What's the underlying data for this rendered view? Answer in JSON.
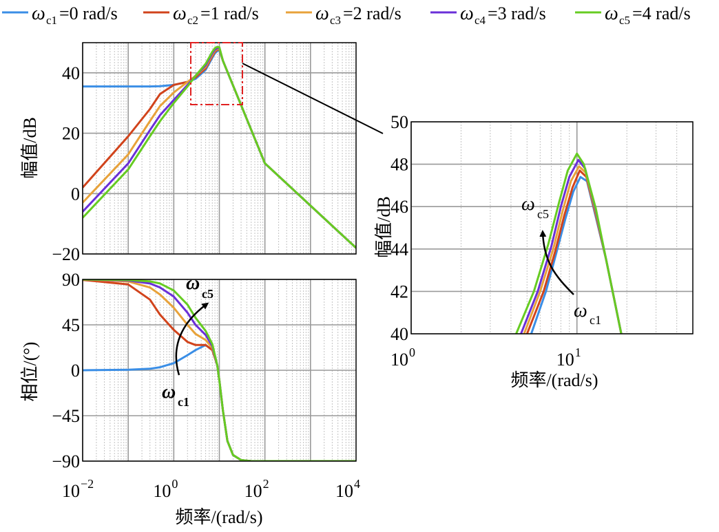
{
  "legend": [
    {
      "sym": "ω",
      "sub": "c1",
      "text": "=0 rad/s",
      "color": "#3a8ee6"
    },
    {
      "sym": "ω",
      "sub": "c2",
      "text": "=1 rad/s",
      "color": "#d1431b"
    },
    {
      "sym": "ω",
      "sub": "c3",
      "text": "=2 rad/s",
      "color": "#e8a23a"
    },
    {
      "sym": "ω",
      "sub": "c4",
      "text": "=3 rad/s",
      "color": "#6a2fd8"
    },
    {
      "sym": "ω",
      "sub": "c5",
      "text": "=4 rad/s",
      "color": "#66cc22"
    }
  ],
  "chart_data": [
    {
      "type": "line",
      "id": "magnitude",
      "ylabel": "幅值/dB",
      "xscale": "log",
      "xlim": [
        0.01,
        10000
      ],
      "ylim": [
        -20,
        50
      ],
      "yticks": [
        -20,
        0,
        20,
        40
      ],
      "grid": true,
      "series": [
        {
          "x": [
            0.01,
            0.1,
            0.3,
            0.5,
            1,
            2,
            3,
            5,
            7,
            8,
            9,
            10,
            12,
            100,
            10000
          ],
          "y": [
            35.5,
            35.5,
            35.5,
            35.6,
            36,
            37,
            38,
            41,
            45,
            46.5,
            47.2,
            47.5,
            44,
            10,
            -18
          ]
        },
        {
          "x": [
            0.01,
            0.1,
            0.3,
            0.5,
            1,
            2,
            3,
            5,
            7,
            8,
            9,
            10,
            12,
            100,
            10000
          ],
          "y": [
            2,
            19,
            28,
            33,
            36,
            37,
            38.5,
            41.5,
            45.5,
            47,
            47.6,
            47.8,
            44,
            10,
            -18
          ]
        },
        {
          "x": [
            0.01,
            0.1,
            0.3,
            0.5,
            1,
            2,
            3,
            5,
            7,
            8,
            9,
            10,
            12,
            100,
            10000
          ],
          "y": [
            -3,
            13,
            24,
            29,
            33.5,
            37,
            39,
            42,
            46,
            47.4,
            47.9,
            48,
            44,
            10,
            -18
          ]
        },
        {
          "x": [
            0.01,
            0.1,
            0.3,
            0.5,
            1,
            2,
            3,
            5,
            7,
            8,
            9,
            10,
            12,
            100,
            10000
          ],
          "y": [
            -6,
            10,
            21,
            26,
            31,
            36,
            39,
            42.5,
            46.5,
            47.7,
            48.2,
            48.3,
            44,
            10,
            -18
          ]
        },
        {
          "x": [
            0.01,
            0.1,
            0.3,
            0.5,
            1,
            2,
            3,
            5,
            7,
            8,
            9,
            10,
            12,
            100,
            10000
          ],
          "y": [
            -8,
            8,
            19,
            24,
            30,
            35.5,
            39,
            43,
            47,
            48.2,
            48.6,
            48.5,
            44,
            10,
            -18
          ]
        }
      ]
    },
    {
      "type": "line",
      "id": "phase",
      "ylabel": "相位/(°)",
      "xlabel": "频率/(rad/s)",
      "xscale": "log",
      "xlim": [
        0.01,
        10000
      ],
      "ylim": [
        -90,
        90
      ],
      "yticks": [
        -90,
        -45,
        0,
        45,
        90
      ],
      "xticks": [
        {
          "base": "10",
          "exp": "−2"
        },
        {
          "base": "10",
          "exp": "0"
        },
        {
          "base": "10",
          "exp": "2"
        },
        {
          "base": "10",
          "exp": "4"
        }
      ],
      "grid": true,
      "series": [
        {
          "x": [
            0.01,
            0.1,
            0.3,
            0.5,
            1,
            2,
            3,
            5,
            7,
            9,
            10,
            12,
            15,
            20,
            30,
            50,
            100,
            10000
          ],
          "y": [
            0,
            0.5,
            1.5,
            3,
            7,
            15,
            20,
            25,
            20,
            5,
            -10,
            -40,
            -70,
            -84,
            -89,
            -90,
            -90,
            -90
          ]
        },
        {
          "x": [
            0.01,
            0.1,
            0.3,
            0.5,
            1,
            2,
            3,
            5,
            7,
            9,
            10,
            12,
            15,
            20,
            30,
            50,
            100,
            10000
          ],
          "y": [
            89.5,
            85,
            70,
            55,
            40,
            28,
            25,
            25,
            20,
            5,
            -10,
            -40,
            -70,
            -84,
            -89,
            -90,
            -90,
            -90
          ]
        },
        {
          "x": [
            0.01,
            0.1,
            0.3,
            0.5,
            1,
            2,
            3,
            5,
            7,
            9,
            10,
            12,
            15,
            20,
            30,
            50,
            100,
            10000
          ],
          "y": [
            90,
            88,
            82,
            75,
            62,
            45,
            36,
            30,
            22,
            5,
            -10,
            -40,
            -70,
            -84,
            -89,
            -90,
            -90,
            -90
          ]
        },
        {
          "x": [
            0.01,
            0.1,
            0.3,
            0.5,
            1,
            2,
            3,
            5,
            7,
            9,
            10,
            12,
            15,
            20,
            30,
            50,
            100,
            10000
          ],
          "y": [
            90,
            89,
            86,
            82,
            73,
            57,
            45,
            35,
            24,
            5,
            -10,
            -40,
            -70,
            -84,
            -89,
            -90,
            -90,
            -90
          ]
        },
        {
          "x": [
            0.01,
            0.1,
            0.3,
            0.5,
            1,
            2,
            3,
            5,
            7,
            9,
            10,
            12,
            15,
            20,
            30,
            50,
            100,
            10000
          ],
          "y": [
            90,
            89.5,
            88,
            86,
            79,
            65,
            52,
            39,
            26,
            5,
            -10,
            -40,
            -70,
            -84,
            -89,
            -90,
            -90,
            -90
          ]
        }
      ],
      "annotations": {
        "arrow_start": {
          "sym": "ω",
          "sub": "c1"
        },
        "arrow_end": {
          "sym": "ω",
          "sub": "c5"
        }
      }
    },
    {
      "type": "line",
      "id": "magnitude-zoom",
      "ylabel": "幅值/dB",
      "xlabel": "频率/(rad/s)",
      "xscale": "log",
      "xlim": [
        1,
        50
      ],
      "ylim": [
        40,
        50
      ],
      "yticks": [
        40,
        42,
        44,
        46,
        48,
        50
      ],
      "xticks": [
        {
          "base": "10",
          "exp": "0"
        },
        {
          "base": "10",
          "exp": "1"
        }
      ],
      "grid": true,
      "series": [
        {
          "x": [
            5.3,
            6.5,
            7.5,
            8.5,
            9.5,
            10.5,
            11.5,
            13,
            15,
            18.5
          ],
          "y": [
            40,
            42,
            43.8,
            45.4,
            46.7,
            47.4,
            47.2,
            45.5,
            43.5,
            40
          ]
        },
        {
          "x": [
            5.0,
            6.3,
            7.4,
            8.4,
            9.4,
            10.4,
            11.4,
            13,
            15,
            18.5
          ],
          "y": [
            40,
            42,
            43.9,
            45.6,
            46.9,
            47.7,
            47.4,
            45.6,
            43.5,
            40
          ]
        },
        {
          "x": [
            4.8,
            6.0,
            7.2,
            8.2,
            9.2,
            10.3,
            11.3,
            13,
            15,
            18.5
          ],
          "y": [
            40,
            42,
            44,
            45.8,
            47.2,
            47.9,
            47.6,
            45.7,
            43.5,
            40
          ]
        },
        {
          "x": [
            4.6,
            5.8,
            7.0,
            8.0,
            9.0,
            10.2,
            11.2,
            13,
            15,
            18.5
          ],
          "y": [
            40,
            42,
            44.1,
            46,
            47.4,
            48.2,
            47.8,
            45.8,
            43.5,
            40
          ]
        },
        {
          "x": [
            4.3,
            5.5,
            6.7,
            7.8,
            8.8,
            10.0,
            11.0,
            13,
            15,
            18.5
          ],
          "y": [
            40,
            42,
            44.2,
            46.2,
            47.7,
            48.5,
            48.0,
            45.9,
            43.5,
            40
          ]
        }
      ],
      "annotations": {
        "arrow_start": {
          "sym": "ω",
          "sub": "c1"
        },
        "arrow_end": {
          "sym": "ω",
          "sub": "c5"
        }
      }
    }
  ]
}
